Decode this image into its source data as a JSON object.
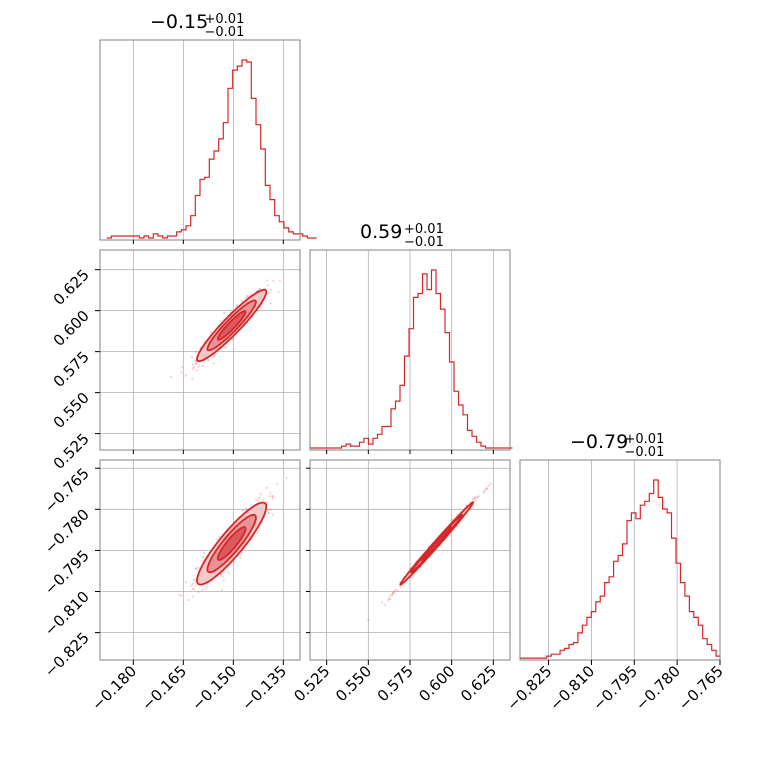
{
  "figure": {
    "type": "corner-plot",
    "accent_color": "#d62728"
  },
  "chart_data": [
    {
      "panel": "diag-0",
      "type": "histogram",
      "title_value": "−0.15",
      "title_sup": "+0.01",
      "title_sub": "−0.01",
      "xlim": [
        -0.19,
        -0.13
      ],
      "grid_x": [
        -0.18,
        -0.165,
        -0.15,
        -0.135
      ],
      "bin_start": -0.188,
      "bin_width": 0.0014,
      "counts": [
        1,
        2,
        2,
        2,
        2,
        2,
        2,
        1,
        2,
        1,
        3,
        2,
        1,
        2,
        2,
        4,
        5,
        7,
        12,
        22,
        30,
        31,
        40,
        44,
        50,
        58,
        75,
        84,
        86,
        89,
        88,
        70,
        57,
        45,
        27,
        20,
        12,
        9,
        6,
        4,
        3,
        3,
        2,
        1,
        1
      ]
    },
    {
      "panel": "diag-1",
      "type": "histogram",
      "title_value": "0.59",
      "title_sup": "+0.01",
      "title_sub": "−0.01",
      "xlim": [
        0.515,
        0.635
      ],
      "grid_x": [
        0.525,
        0.55,
        0.575,
        0.6,
        0.625
      ],
      "bin_start": 0.515,
      "bin_width": 0.0027,
      "counts": [
        1,
        1,
        1,
        1,
        1,
        1,
        1,
        2,
        3,
        2,
        2,
        4,
        6,
        3,
        6,
        8,
        12,
        12,
        21,
        25,
        33,
        48,
        62,
        78,
        80,
        90,
        82,
        92,
        80,
        72,
        60,
        45,
        30,
        23,
        18,
        10,
        7,
        4,
        2,
        1,
        1,
        1,
        1,
        1,
        1
      ]
    },
    {
      "panel": "diag-2",
      "type": "histogram",
      "title_value": "−0.79",
      "title_sup": "+0.01",
      "title_sub": "−0.01",
      "xlim": [
        -0.835,
        -0.765
      ],
      "grid_x": [
        -0.825,
        -0.81,
        -0.795,
        -0.78,
        -0.765
      ],
      "bin_start": -0.835,
      "bin_width": 0.00156,
      "counts": [
        1,
        1,
        1,
        1,
        1,
        1,
        2,
        3,
        3,
        5,
        6,
        8,
        9,
        14,
        18,
        22,
        25,
        30,
        33,
        40,
        43,
        51,
        54,
        60,
        72,
        76,
        73,
        80,
        82,
        86,
        93,
        84,
        78,
        76,
        63,
        50,
        40,
        33,
        25,
        22,
        18,
        11,
        8,
        5,
        2
      ]
    },
    {
      "panel": "scatter-1-0",
      "type": "scatter",
      "xlim": [
        -0.19,
        -0.13
      ],
      "ylim": [
        0.515,
        0.637
      ],
      "xticks": [
        -0.18,
        -0.165,
        -0.15,
        -0.135
      ],
      "yticks": [
        0.525,
        0.55,
        0.575,
        0.6,
        0.625
      ],
      "center": [
        -0.1505,
        0.591
      ],
      "sd": [
        0.0052,
        0.0109
      ],
      "rho": 0.94
    },
    {
      "panel": "scatter-2-0",
      "type": "scatter",
      "xlim": [
        -0.19,
        -0.13
      ],
      "ylim": [
        -0.835,
        -0.762
      ],
      "xticks": [
        -0.18,
        -0.165,
        -0.15,
        -0.135
      ],
      "yticks": [
        -0.825,
        -0.81,
        -0.795,
        -0.78,
        -0.765
      ],
      "center": [
        -0.1505,
        -0.7925
      ],
      "sd": [
        0.0052,
        0.0075
      ],
      "rho": 0.9
    },
    {
      "panel": "scatter-2-1",
      "type": "scatter",
      "xlim": [
        0.515,
        0.635
      ],
      "ylim": [
        -0.835,
        -0.762
      ],
      "xticks": [
        0.525,
        0.55,
        0.575,
        0.6,
        0.625
      ],
      "yticks": [
        -0.825,
        -0.81,
        -0.795,
        -0.78,
        -0.765
      ],
      "center": [
        0.591,
        -0.7925
      ],
      "sd": [
        0.0109,
        0.0075
      ],
      "rho": 0.995
    }
  ],
  "axis_labels": {
    "col0_x": [
      "−0.180",
      "−0.165",
      "−0.150",
      "−0.135"
    ],
    "col1_x": [
      "0.525",
      "0.550",
      "0.575",
      "0.600",
      "0.625"
    ],
    "col2_x": [
      "−0.825",
      "−0.810",
      "−0.795",
      "−0.780",
      "−0.765"
    ],
    "row1_y": [
      "0.525",
      "0.550",
      "0.575",
      "0.600",
      "0.625"
    ],
    "row2_y": [
      "−0.825",
      "−0.810",
      "−0.795",
      "−0.780",
      "−0.765"
    ]
  }
}
